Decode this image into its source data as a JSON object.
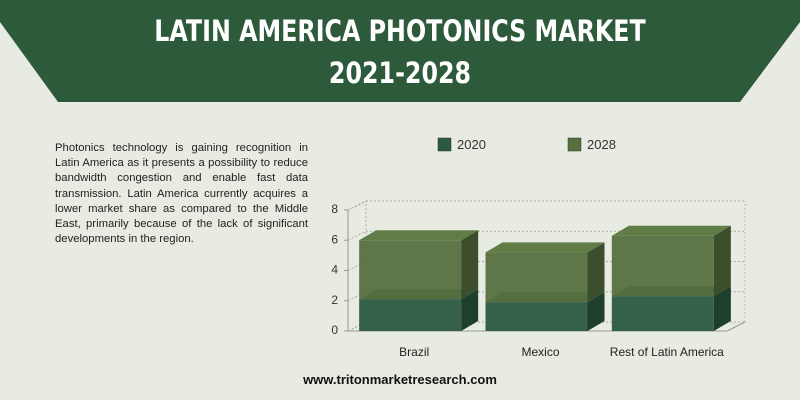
{
  "header": {
    "title": "LATIN AMERICA  PHOTONICS MARKET",
    "subtitle": "2021-2028"
  },
  "description": "Photonics technology is gaining recognition in Latin America as it presents a possibility to reduce bandwidth congestion and enable fast data transmission. Latin America currently acquires a lower market share as compared to the Middle East, primarily because of the lack of significant developments in the region.",
  "footer": "www.tritonmarketresearch.com",
  "chart_data": {
    "type": "stacked-bar-3d",
    "categories": [
      "Brazil",
      "Mexico",
      "Rest of Latin America"
    ],
    "series": [
      {
        "name": "2020",
        "color": "#2b5a3f",
        "values": [
          2.1,
          1.9,
          2.3
        ]
      },
      {
        "name": "2028",
        "color": "#56703f",
        "values": [
          3.9,
          3.3,
          4.0
        ]
      }
    ],
    "ylim": [
      0,
      8
    ],
    "yticks": [
      0,
      2,
      4,
      6,
      8
    ],
    "grid": true
  }
}
